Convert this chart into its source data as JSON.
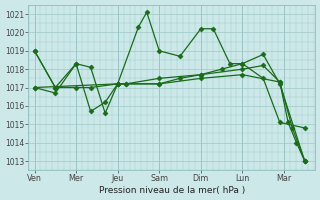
{
  "xlabel": "Pression niveau de la mer( hPa )",
  "background_color": "#cce8e8",
  "grid_color": "#a0c8c8",
  "line_color": "#1a6b1a",
  "x_labels": [
    "Ven",
    "Mer",
    "Jeu",
    "Sam",
    "Dim",
    "Lun",
    "Mar"
  ],
  "x_ticks": [
    0,
    1,
    2,
    3,
    4,
    5,
    6
  ],
  "ylim": [
    1012.5,
    1021.5
  ],
  "yticks": [
    1013,
    1014,
    1015,
    1016,
    1017,
    1018,
    1019,
    1020,
    1021
  ],
  "series": [
    {
      "x": [
        0,
        0.5,
        1.0,
        1.35,
        1.7,
        2.0,
        2.5,
        2.7,
        3.0,
        3.5,
        4.0,
        4.3,
        4.7,
        5.0,
        5.5,
        5.9,
        6.5
      ],
      "y": [
        1019.0,
        1017.0,
        1018.3,
        1018.1,
        1015.6,
        1017.2,
        1020.3,
        1021.1,
        1019.0,
        1018.7,
        1020.2,
        1020.2,
        1018.3,
        1018.3,
        1018.8,
        1017.2,
        1013.0
      ]
    },
    {
      "x": [
        0,
        0.5,
        1.0,
        1.35,
        1.7,
        2.0,
        2.2,
        3.0,
        3.5,
        4.0,
        4.5,
        5.0,
        5.5,
        5.9,
        6.5
      ],
      "y": [
        1017.0,
        1016.7,
        1018.3,
        1015.7,
        1016.2,
        1017.2,
        1017.2,
        1017.2,
        1017.5,
        1017.7,
        1018.0,
        1018.3,
        1017.5,
        1015.1,
        1014.8
      ]
    },
    {
      "x": [
        0,
        2.0,
        2.2,
        3.0,
        4.0,
        5.0,
        5.5,
        5.9,
        6.1,
        6.3,
        6.5
      ],
      "y": [
        1017.0,
        1017.2,
        1017.2,
        1017.5,
        1017.7,
        1018.0,
        1018.2,
        1017.3,
        1015.1,
        1014.0,
        1013.0
      ]
    },
    {
      "x": [
        0,
        0.5,
        1.0,
        1.35,
        2.0,
        3.0,
        4.0,
        5.0,
        5.9,
        6.2,
        6.5
      ],
      "y": [
        1019.0,
        1017.0,
        1017.0,
        1017.0,
        1017.2,
        1017.2,
        1017.5,
        1017.7,
        1017.3,
        1014.8,
        1013.0
      ]
    }
  ]
}
